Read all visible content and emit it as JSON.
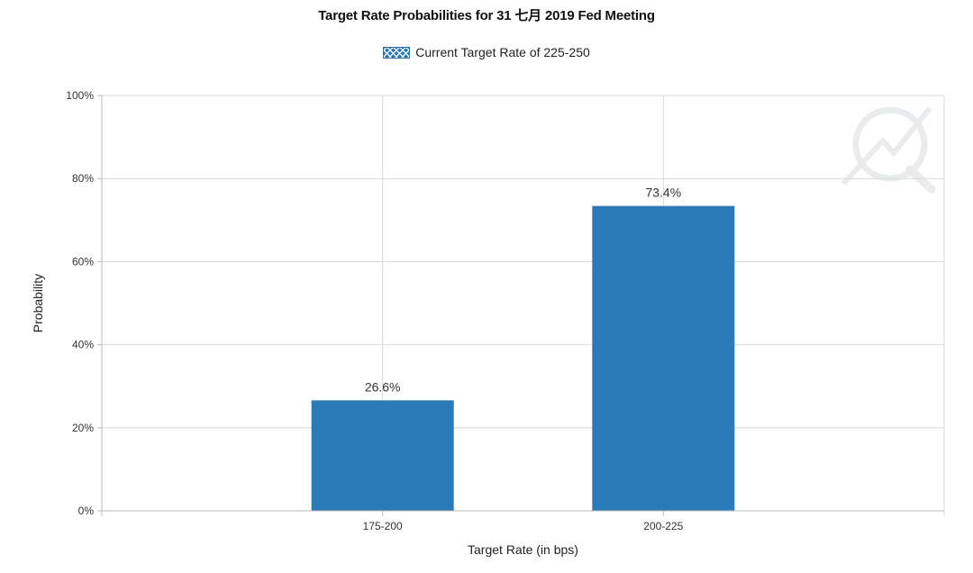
{
  "chart_data": {
    "type": "bar",
    "title": "Target Rate Probabilities for 31 七月 2019 Fed Meeting",
    "legend": {
      "label": "Current Target Rate of 225-250",
      "placement": "top-center"
    },
    "xlabel": "Target Rate (in bps)",
    "ylabel": "Probability",
    "categories": [
      "175-200",
      "200-225"
    ],
    "values": [
      26.6,
      73.4
    ],
    "value_labels": [
      "26.6%",
      "73.4%"
    ],
    "ylim": [
      0,
      100
    ],
    "y_ticks": [
      0,
      20,
      40,
      60,
      80,
      100
    ],
    "y_tick_labels": [
      "0%",
      "20%",
      "40%",
      "60%",
      "80%",
      "100%"
    ],
    "grid": true,
    "colors": {
      "bar": "#2a7ab8",
      "grid": "#d9d9d9",
      "axis": "#bbbbbb"
    }
  },
  "watermark": {
    "icon": "quiz-q-logo-icon"
  }
}
